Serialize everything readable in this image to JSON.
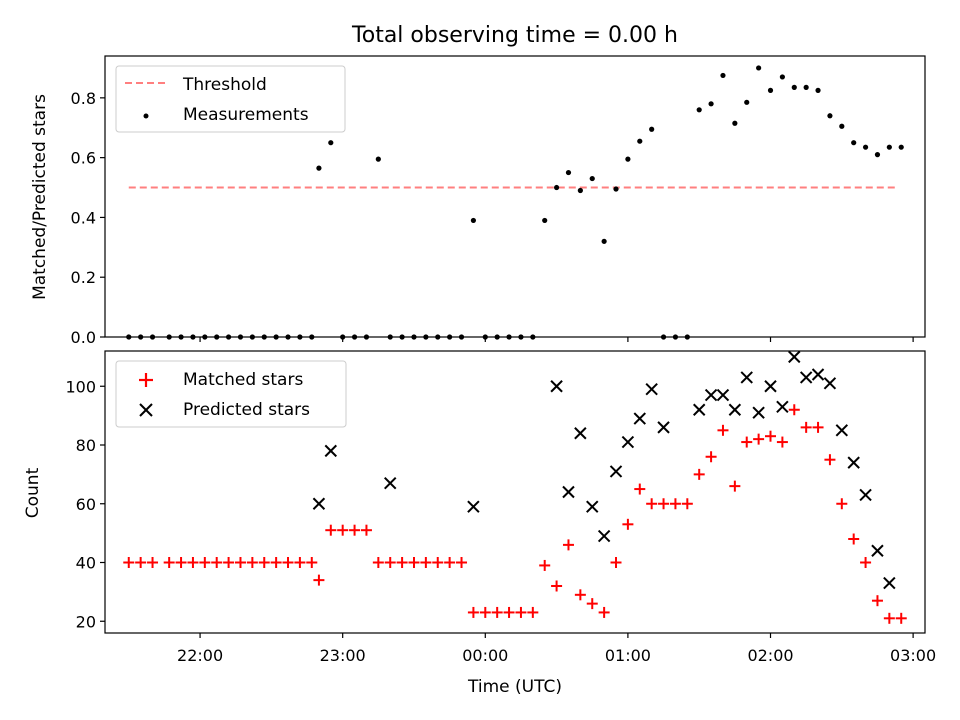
{
  "chart_data": [
    {
      "type": "scatter",
      "title": "Total observing time = 0.00 h",
      "ylabel": "Matched/Predicted stars",
      "ylim": [
        0,
        0.94
      ],
      "yticks": [
        0.0,
        0.2,
        0.4,
        0.6,
        0.8
      ],
      "ytick_labels": [
        "0.0",
        "0.2",
        "0.4",
        "0.6",
        "0.8"
      ],
      "legend": {
        "placement": "top-left"
      },
      "series": [
        {
          "name": "Threshold",
          "kind": "line",
          "style": "dashed",
          "color": "#ff7f7f",
          "x": [
            "21:30",
            "02:53"
          ],
          "y": [
            0.5,
            0.5
          ]
        },
        {
          "name": "Measurements",
          "kind": "scatter",
          "marker": "dot",
          "color": "#000000",
          "x": [
            "21:30",
            "21:35",
            "21:40",
            "21:47",
            "21:52",
            "21:57",
            "22:02",
            "22:07",
            "22:12",
            "22:17",
            "22:22",
            "22:27",
            "22:32",
            "22:37",
            "22:42",
            "22:47",
            "22:50",
            "22:55",
            "23:00",
            "23:05",
            "23:10",
            "23:15",
            "23:20",
            "23:25",
            "23:30",
            "23:35",
            "23:40",
            "23:45",
            "23:50",
            "23:55",
            "00:00",
            "00:05",
            "00:10",
            "00:15",
            "00:20",
            "00:25",
            "00:30",
            "00:35",
            "00:40",
            "00:45",
            "00:50",
            "00:55",
            "01:00",
            "01:05",
            "01:10",
            "01:15",
            "01:20",
            "01:25",
            "01:30",
            "01:35",
            "01:40",
            "01:45",
            "01:50",
            "01:55",
            "02:00",
            "02:05",
            "02:10",
            "02:15",
            "02:20",
            "02:25",
            "02:30",
            "02:35",
            "02:40",
            "02:45",
            "02:50",
            "02:55"
          ],
          "y": [
            0,
            0,
            0,
            0,
            0,
            0,
            0,
            0,
            0,
            0,
            0,
            0,
            0,
            0,
            0,
            0,
            0.565,
            0.65,
            0,
            0,
            0,
            0.595,
            0,
            0,
            0,
            0,
            0,
            0,
            0,
            0.39,
            0,
            0,
            0,
            0,
            0,
            0.39,
            0.5,
            0.55,
            0.49,
            0.53,
            0.32,
            0.495,
            0.595,
            0.655,
            0.695,
            0,
            0,
            0,
            0.76,
            0.78,
            0.875,
            0.715,
            0.785,
            0.9,
            0.825,
            0.87,
            0.835,
            0.835,
            0.825,
            0.74,
            0.705,
            0.65,
            0.635,
            0.61,
            0.635,
            0.635
          ]
        }
      ]
    },
    {
      "type": "scatter",
      "xlabel": "Time (UTC)",
      "ylabel": "Count",
      "ylim": [
        16,
        112
      ],
      "yticks": [
        20,
        40,
        60,
        80,
        100
      ],
      "ytick_labels": [
        "20",
        "40",
        "60",
        "80",
        "100"
      ],
      "x_ticks": [
        "22:00",
        "23:00",
        "00:00",
        "01:00",
        "02:00",
        "03:00"
      ],
      "xlim": [
        "21:20",
        "03:05"
      ],
      "legend": {
        "placement": "top-left"
      },
      "series": [
        {
          "name": "Matched stars",
          "kind": "scatter",
          "marker": "plus",
          "color": "#ff0000",
          "x": [
            "21:30",
            "21:35",
            "21:40",
            "21:47",
            "21:52",
            "21:57",
            "22:02",
            "22:07",
            "22:12",
            "22:17",
            "22:22",
            "22:27",
            "22:32",
            "22:37",
            "22:42",
            "22:47",
            "22:50",
            "22:55",
            "23:00",
            "23:05",
            "23:10",
            "23:15",
            "23:20",
            "23:25",
            "23:30",
            "23:35",
            "23:40",
            "23:45",
            "23:50",
            "23:55",
            "00:00",
            "00:05",
            "00:10",
            "00:15",
            "00:20",
            "00:25",
            "00:30",
            "00:35",
            "00:40",
            "00:45",
            "00:50",
            "00:55",
            "01:00",
            "01:05",
            "01:10",
            "01:15",
            "01:20",
            "01:25",
            "01:30",
            "01:35",
            "01:40",
            "01:45",
            "01:50",
            "01:55",
            "02:00",
            "02:05",
            "02:10",
            "02:15",
            "02:20",
            "02:25",
            "02:30",
            "02:35",
            "02:40",
            "02:45",
            "02:50",
            "02:55"
          ],
          "y": [
            40,
            40,
            40,
            40,
            40,
            40,
            40,
            40,
            40,
            40,
            40,
            40,
            40,
            40,
            40,
            40,
            34,
            51,
            51,
            51,
            51,
            40,
            40,
            40,
            40,
            40,
            40,
            40,
            40,
            23,
            23,
            23,
            23,
            23,
            23,
            39,
            32,
            46,
            29,
            26,
            23,
            40,
            53,
            65,
            60,
            60,
            60,
            60,
            70,
            76,
            85,
            66,
            81,
            82,
            83,
            81,
            92,
            86,
            86,
            75,
            60,
            48,
            40,
            27,
            21,
            21
          ]
        },
        {
          "name": "Predicted stars",
          "kind": "scatter",
          "marker": "x",
          "color": "#000000",
          "x": [
            "22:50",
            "22:55",
            "23:20",
            "23:55",
            "00:30",
            "00:35",
            "00:40",
            "00:45",
            "00:50",
            "00:55",
            "01:00",
            "01:05",
            "01:10",
            "01:15",
            "01:30",
            "01:35",
            "01:40",
            "01:45",
            "01:50",
            "01:55",
            "02:00",
            "02:05",
            "02:10",
            "02:15",
            "02:20",
            "02:25",
            "02:30",
            "02:35",
            "02:40",
            "02:45",
            "02:50"
          ],
          "y": [
            60,
            78,
            67,
            59,
            100,
            64,
            84,
            59,
            49,
            71,
            81,
            89,
            99,
            86,
            92,
            97,
            97,
            92,
            103,
            91,
            100,
            93,
            110,
            103,
            104,
            101,
            85,
            74,
            63,
            44,
            33
          ]
        }
      ]
    }
  ]
}
